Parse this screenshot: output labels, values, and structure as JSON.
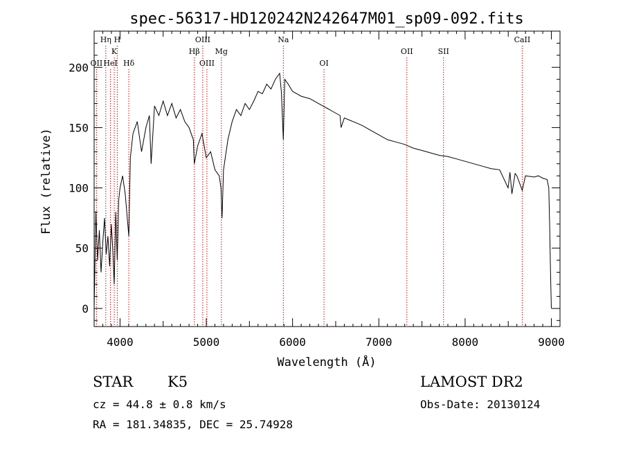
{
  "chart_data": {
    "type": "line",
    "title": "spec-56317-HD120242N242647M01_sp09-092.fits",
    "xlabel": "Wavelength (Å)",
    "ylabel": "Flux (relative)",
    "xlim": [
      3700,
      9100
    ],
    "ylim": [
      -15,
      230
    ],
    "x_ticks": [
      4000,
      5000,
      6000,
      7000,
      8000,
      9000
    ],
    "y_ticks": [
      0,
      50,
      100,
      150,
      200
    ],
    "grid": false,
    "line_color": "#000000",
    "marker_color": "#cc0000",
    "series": [
      {
        "x": [
          3700,
          3720,
          3740,
          3760,
          3780,
          3800,
          3820,
          3840,
          3860,
          3880,
          3900,
          3915,
          3933,
          3950,
          3968,
          3985,
          4000,
          4030,
          4060,
          4102,
          4120,
          4150,
          4200,
          4250,
          4300,
          4340,
          4360,
          4400,
          4450,
          4500,
          4550,
          4600,
          4650,
          4700,
          4750,
          4800,
          4850,
          4861,
          4900,
          4950,
          5000,
          5050,
          5100,
          5150,
          5170,
          5183,
          5200,
          5250,
          5300,
          5350,
          5400,
          5450,
          5500,
          5550,
          5600,
          5650,
          5700,
          5750,
          5800,
          5850,
          5870,
          5893,
          5910,
          5950,
          6000,
          6050,
          6100,
          6150,
          6200,
          6250,
          6300,
          6350,
          6400,
          6450,
          6500,
          6550,
          6563,
          6600,
          6700,
          6800,
          6900,
          7000,
          7100,
          7200,
          7300,
          7400,
          7500,
          7600,
          7700,
          7800,
          7900,
          8000,
          8100,
          8200,
          8300,
          8400,
          8498,
          8520,
          8542,
          8580,
          8600,
          8662,
          8700,
          8800,
          8850,
          8900,
          8950,
          8970,
          8980,
          8990,
          9000
        ],
        "y": [
          0,
          80,
          40,
          65,
          30,
          55,
          75,
          45,
          60,
          35,
          70,
          50,
          20,
          80,
          40,
          90,
          100,
          110,
          95,
          60,
          125,
          145,
          155,
          130,
          150,
          160,
          120,
          168,
          160,
          172,
          160,
          170,
          158,
          165,
          155,
          150,
          140,
          120,
          135,
          145,
          125,
          130,
          115,
          110,
          100,
          75,
          115,
          140,
          155,
          165,
          160,
          170,
          165,
          172,
          180,
          178,
          186,
          182,
          190,
          195,
          180,
          140,
          190,
          186,
          180,
          178,
          176,
          175,
          174,
          172,
          170,
          168,
          166,
          164,
          162,
          160,
          150,
          158,
          155,
          152,
          148,
          144,
          140,
          138,
          136,
          133,
          131,
          129,
          127,
          126,
          124,
          122,
          120,
          118,
          116,
          115,
          100,
          113,
          95,
          112,
          110,
          98,
          110,
          109,
          110,
          108,
          107,
          100,
          70,
          30,
          0
        ]
      }
    ],
    "line_markers": [
      {
        "label": "OII",
        "x": 3727,
        "row": 3
      },
      {
        "label": "Hη",
        "x": 3835,
        "row": 1
      },
      {
        "label": "HeI",
        "x": 3889,
        "row": 3
      },
      {
        "label": "K",
        "x": 3933,
        "row": 2
      },
      {
        "label": "H",
        "x": 3968,
        "row": 1
      },
      {
        "label": "Hδ",
        "x": 4102,
        "row": 3
      },
      {
        "label": "Hβ",
        "x": 4861,
        "row": 2
      },
      {
        "label": "OIII",
        "x": 4959,
        "row": 1
      },
      {
        "label": "OIII",
        "x": 5007,
        "row": 3
      },
      {
        "label": "Mg",
        "x": 5175,
        "row": 2
      },
      {
        "label": "Na",
        "x": 5893,
        "row": 1
      },
      {
        "label": "OI",
        "x": 6364,
        "row": 3
      },
      {
        "label": "OII",
        "x": 7325,
        "row": 2
      },
      {
        "label": "SII",
        "x": 7750,
        "row": 2
      },
      {
        "label": "CaII",
        "x": 8662,
        "row": 1
      }
    ]
  },
  "info": {
    "class": "STAR",
    "subclass": "K5",
    "survey": "LAMOST DR2",
    "redshift": "cz = 44.8 ± 0.8 km/s",
    "obs_date": "Obs-Date: 20130124",
    "coords": "RA = 181.34835, DEC =  25.74928"
  }
}
